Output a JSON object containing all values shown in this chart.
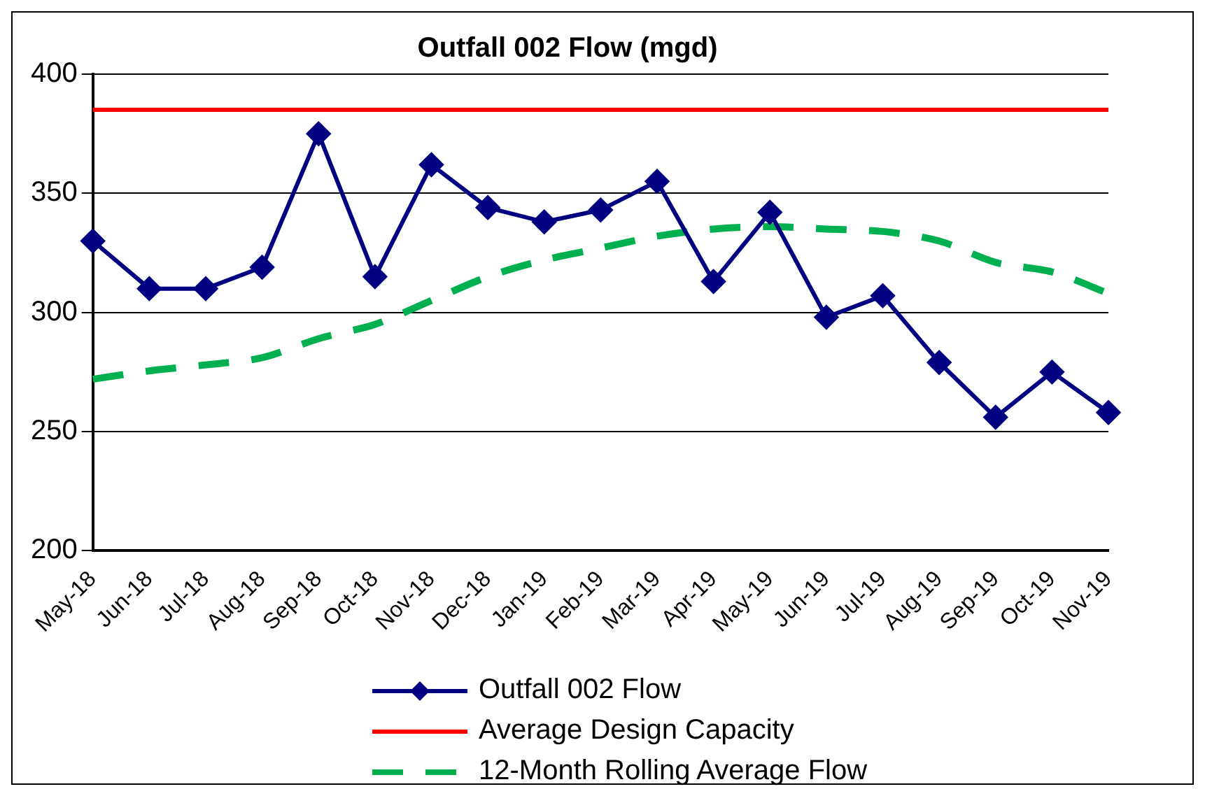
{
  "chart_data": {
    "type": "line",
    "title": "Outfall 002 Flow (mgd)",
    "categories": [
      "May-18",
      "Jun-18",
      "Jul-18",
      "Aug-18",
      "Sep-18",
      "Oct-18",
      "Nov-18",
      "Dec-18",
      "Jan-19",
      "Feb-19",
      "Mar-19",
      "Apr-19",
      "May-19",
      "Jun-19",
      "Jul-19",
      "Aug-19",
      "Sep-19",
      "Oct-19",
      "Nov-19"
    ],
    "series": [
      {
        "name": "Outfall 002 Flow",
        "color": "#000080",
        "marker": "diamond",
        "line_style": "solid",
        "values": [
          330,
          310,
          310,
          319,
          375,
          315,
          362,
          344,
          338,
          343,
          355,
          313,
          342,
          298,
          307,
          279,
          256,
          275,
          258
        ]
      },
      {
        "name": "Average Design Capacity",
        "color": "#ff0000",
        "marker": "none",
        "line_style": "solid",
        "values": [
          385,
          385,
          385,
          385,
          385,
          385,
          385,
          385,
          385,
          385,
          385,
          385,
          385,
          385,
          385,
          385,
          385,
          385,
          385
        ]
      },
      {
        "name": "12-Month Rolling Average Flow",
        "color": "#00b050",
        "marker": "none",
        "line_style": "dashed",
        "values": [
          272,
          275.5,
          278,
          281,
          289,
          295,
          305,
          315,
          322,
          327,
          332,
          335,
          336,
          335,
          334,
          330,
          321,
          317,
          308
        ]
      }
    ],
    "ylim": [
      200,
      400
    ],
    "yticks": [
      200,
      250,
      300,
      350,
      400
    ],
    "grid": "y",
    "legend": "bottom"
  }
}
